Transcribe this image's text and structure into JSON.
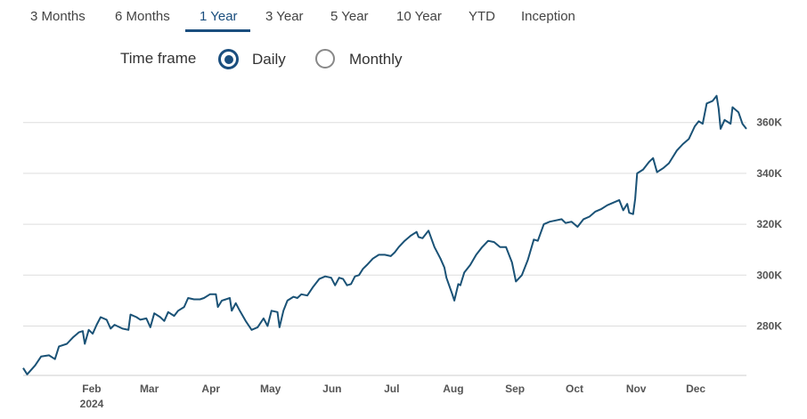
{
  "tabs": [
    {
      "label": "3 Months",
      "active": false
    },
    {
      "label": "6 Months",
      "active": false
    },
    {
      "label": "1 Year",
      "active": true
    },
    {
      "label": "3 Year",
      "active": false
    },
    {
      "label": "5 Year",
      "active": false
    },
    {
      "label": "10 Year",
      "active": false
    },
    {
      "label": "YTD",
      "active": false
    },
    {
      "label": "Inception",
      "active": false
    }
  ],
  "timeframe": {
    "label": "Time frame",
    "options": [
      {
        "label": "Daily",
        "selected": true
      },
      {
        "label": "Monthly",
        "selected": false
      }
    ]
  },
  "colors": {
    "line": "#1a5276",
    "accent": "#1a4e7e",
    "grid": "#dddddd"
  },
  "chart_data": {
    "type": "line",
    "year_label": "2024",
    "x_tick_labels": [
      "Feb",
      "Mar",
      "Apr",
      "May",
      "Jun",
      "Jul",
      "Aug",
      "Sep",
      "Oct",
      "Nov",
      "Dec"
    ],
    "y_tick_labels": [
      "280K",
      "300K",
      "320K",
      "340K",
      "360K"
    ],
    "yticks": [
      280000,
      300000,
      320000,
      340000,
      360000
    ],
    "ylim": [
      261000,
      372000
    ],
    "xlim": [
      "2024-01-02",
      "2024-12-31"
    ],
    "grid": true,
    "series": [
      {
        "values": [
          [
            "2024-01-02",
            263500
          ],
          [
            "2024-01-04",
            261000
          ],
          [
            "2024-01-08",
            264500
          ],
          [
            "2024-01-11",
            268000
          ],
          [
            "2024-01-15",
            268500
          ],
          [
            "2024-01-18",
            267000
          ],
          [
            "2024-01-20",
            272000
          ],
          [
            "2024-01-24",
            273000
          ],
          [
            "2024-01-27",
            275500
          ],
          [
            "2024-01-30",
            277500
          ],
          [
            "2024-02-01",
            278000
          ],
          [
            "2024-02-02",
            273000
          ],
          [
            "2024-02-04",
            278500
          ],
          [
            "2024-02-06",
            277000
          ],
          [
            "2024-02-08",
            280500
          ],
          [
            "2024-02-10",
            283500
          ],
          [
            "2024-02-13",
            282500
          ],
          [
            "2024-02-15",
            279000
          ],
          [
            "2024-02-17",
            280500
          ],
          [
            "2024-02-21",
            279000
          ],
          [
            "2024-02-24",
            278500
          ],
          [
            "2024-02-25",
            284500
          ],
          [
            "2024-02-28",
            283500
          ],
          [
            "2024-03-01",
            282500
          ],
          [
            "2024-03-04",
            283000
          ],
          [
            "2024-03-06",
            279500
          ],
          [
            "2024-03-08",
            285000
          ],
          [
            "2024-03-11",
            283500
          ],
          [
            "2024-03-13",
            282000
          ],
          [
            "2024-03-15",
            285500
          ],
          [
            "2024-03-18",
            284000
          ],
          [
            "2024-03-20",
            286000
          ],
          [
            "2024-03-23",
            287500
          ],
          [
            "2024-03-25",
            291000
          ],
          [
            "2024-03-28",
            290500
          ],
          [
            "2024-03-31",
            290500
          ],
          [
            "2024-04-02",
            291000
          ],
          [
            "2024-04-05",
            292500
          ],
          [
            "2024-04-08",
            292500
          ],
          [
            "2024-04-09",
            287500
          ],
          [
            "2024-04-11",
            290000
          ],
          [
            "2024-04-13",
            290500
          ],
          [
            "2024-04-15",
            291000
          ],
          [
            "2024-04-16",
            286000
          ],
          [
            "2024-04-18",
            289000
          ],
          [
            "2024-04-20",
            286000
          ],
          [
            "2024-04-23",
            282000
          ],
          [
            "2024-04-26",
            278500
          ],
          [
            "2024-04-29",
            279500
          ],
          [
            "2024-05-02",
            283000
          ],
          [
            "2024-05-04",
            280000
          ],
          [
            "2024-05-06",
            286000
          ],
          [
            "2024-05-09",
            285500
          ],
          [
            "2024-05-10",
            279500
          ],
          [
            "2024-05-12",
            286000
          ],
          [
            "2024-05-14",
            290000
          ],
          [
            "2024-05-17",
            291500
          ],
          [
            "2024-05-19",
            291000
          ],
          [
            "2024-05-21",
            292500
          ],
          [
            "2024-05-24",
            292000
          ],
          [
            "2024-05-27",
            295500
          ],
          [
            "2024-05-30",
            298500
          ],
          [
            "2024-06-02",
            299500
          ],
          [
            "2024-06-05",
            299000
          ],
          [
            "2024-06-07",
            296000
          ],
          [
            "2024-06-09",
            299000
          ],
          [
            "2024-06-11",
            298500
          ],
          [
            "2024-06-13",
            296000
          ],
          [
            "2024-06-15",
            296500
          ],
          [
            "2024-06-17",
            299500
          ],
          [
            "2024-06-19",
            300000
          ],
          [
            "2024-06-21",
            302500
          ],
          [
            "2024-06-23",
            304000
          ],
          [
            "2024-06-26",
            306500
          ],
          [
            "2024-06-29",
            308000
          ],
          [
            "2024-07-02",
            308000
          ],
          [
            "2024-07-05",
            307500
          ],
          [
            "2024-07-07",
            309000
          ],
          [
            "2024-07-09",
            311000
          ],
          [
            "2024-07-12",
            313500
          ],
          [
            "2024-07-15",
            315500
          ],
          [
            "2024-07-18",
            317000
          ],
          [
            "2024-07-19",
            315000
          ],
          [
            "2024-07-21",
            314500
          ],
          [
            "2024-07-24",
            317500
          ],
          [
            "2024-07-27",
            311000
          ],
          [
            "2024-07-30",
            306500
          ],
          [
            "2024-08-01",
            303000
          ],
          [
            "2024-08-02",
            299000
          ],
          [
            "2024-08-05",
            292500
          ],
          [
            "2024-08-06",
            290000
          ],
          [
            "2024-08-08",
            296500
          ],
          [
            "2024-08-09",
            296000
          ],
          [
            "2024-08-11",
            301000
          ],
          [
            "2024-08-14",
            304000
          ],
          [
            "2024-08-17",
            308000
          ],
          [
            "2024-08-20",
            311000
          ],
          [
            "2024-08-23",
            313500
          ],
          [
            "2024-08-26",
            313000
          ],
          [
            "2024-08-29",
            311000
          ],
          [
            "2024-09-01",
            311000
          ],
          [
            "2024-09-04",
            305000
          ],
          [
            "2024-09-06",
            297500
          ],
          [
            "2024-09-09",
            300000
          ],
          [
            "2024-09-12",
            306000
          ],
          [
            "2024-09-15",
            314000
          ],
          [
            "2024-09-17",
            313500
          ],
          [
            "2024-09-20",
            320000
          ],
          [
            "2024-09-23",
            321000
          ],
          [
            "2024-09-26",
            321500
          ],
          [
            "2024-09-29",
            322000
          ],
          [
            "2024-10-01",
            320500
          ],
          [
            "2024-10-04",
            321000
          ],
          [
            "2024-10-07",
            319000
          ],
          [
            "2024-10-10",
            322000
          ],
          [
            "2024-10-13",
            323000
          ],
          [
            "2024-10-16",
            325000
          ],
          [
            "2024-10-19",
            326000
          ],
          [
            "2024-10-22",
            327500
          ],
          [
            "2024-10-25",
            328500
          ],
          [
            "2024-10-28",
            329500
          ],
          [
            "2024-10-30",
            325500
          ],
          [
            "2024-11-01",
            328000
          ],
          [
            "2024-11-02",
            324500
          ],
          [
            "2024-11-04",
            324000
          ],
          [
            "2024-11-05",
            330000
          ],
          [
            "2024-11-06",
            340000
          ],
          [
            "2024-11-09",
            341500
          ],
          [
            "2024-11-12",
            344500
          ],
          [
            "2024-11-14",
            346000
          ],
          [
            "2024-11-16",
            340500
          ],
          [
            "2024-11-19",
            342000
          ],
          [
            "2024-11-22",
            344000
          ],
          [
            "2024-11-26",
            349000
          ],
          [
            "2024-11-29",
            351500
          ],
          [
            "2024-12-02",
            353500
          ],
          [
            "2024-12-05",
            358500
          ],
          [
            "2024-12-07",
            360500
          ],
          [
            "2024-12-09",
            359500
          ],
          [
            "2024-12-11",
            367500
          ],
          [
            "2024-12-14",
            368500
          ],
          [
            "2024-12-16",
            370500
          ],
          [
            "2024-12-17",
            365500
          ],
          [
            "2024-12-18",
            357500
          ],
          [
            "2024-12-20",
            361000
          ],
          [
            "2024-12-23",
            359500
          ],
          [
            "2024-12-24",
            366000
          ],
          [
            "2024-12-27",
            364000
          ],
          [
            "2024-12-29",
            359500
          ],
          [
            "2024-12-31",
            357500
          ]
        ]
      }
    ]
  }
}
